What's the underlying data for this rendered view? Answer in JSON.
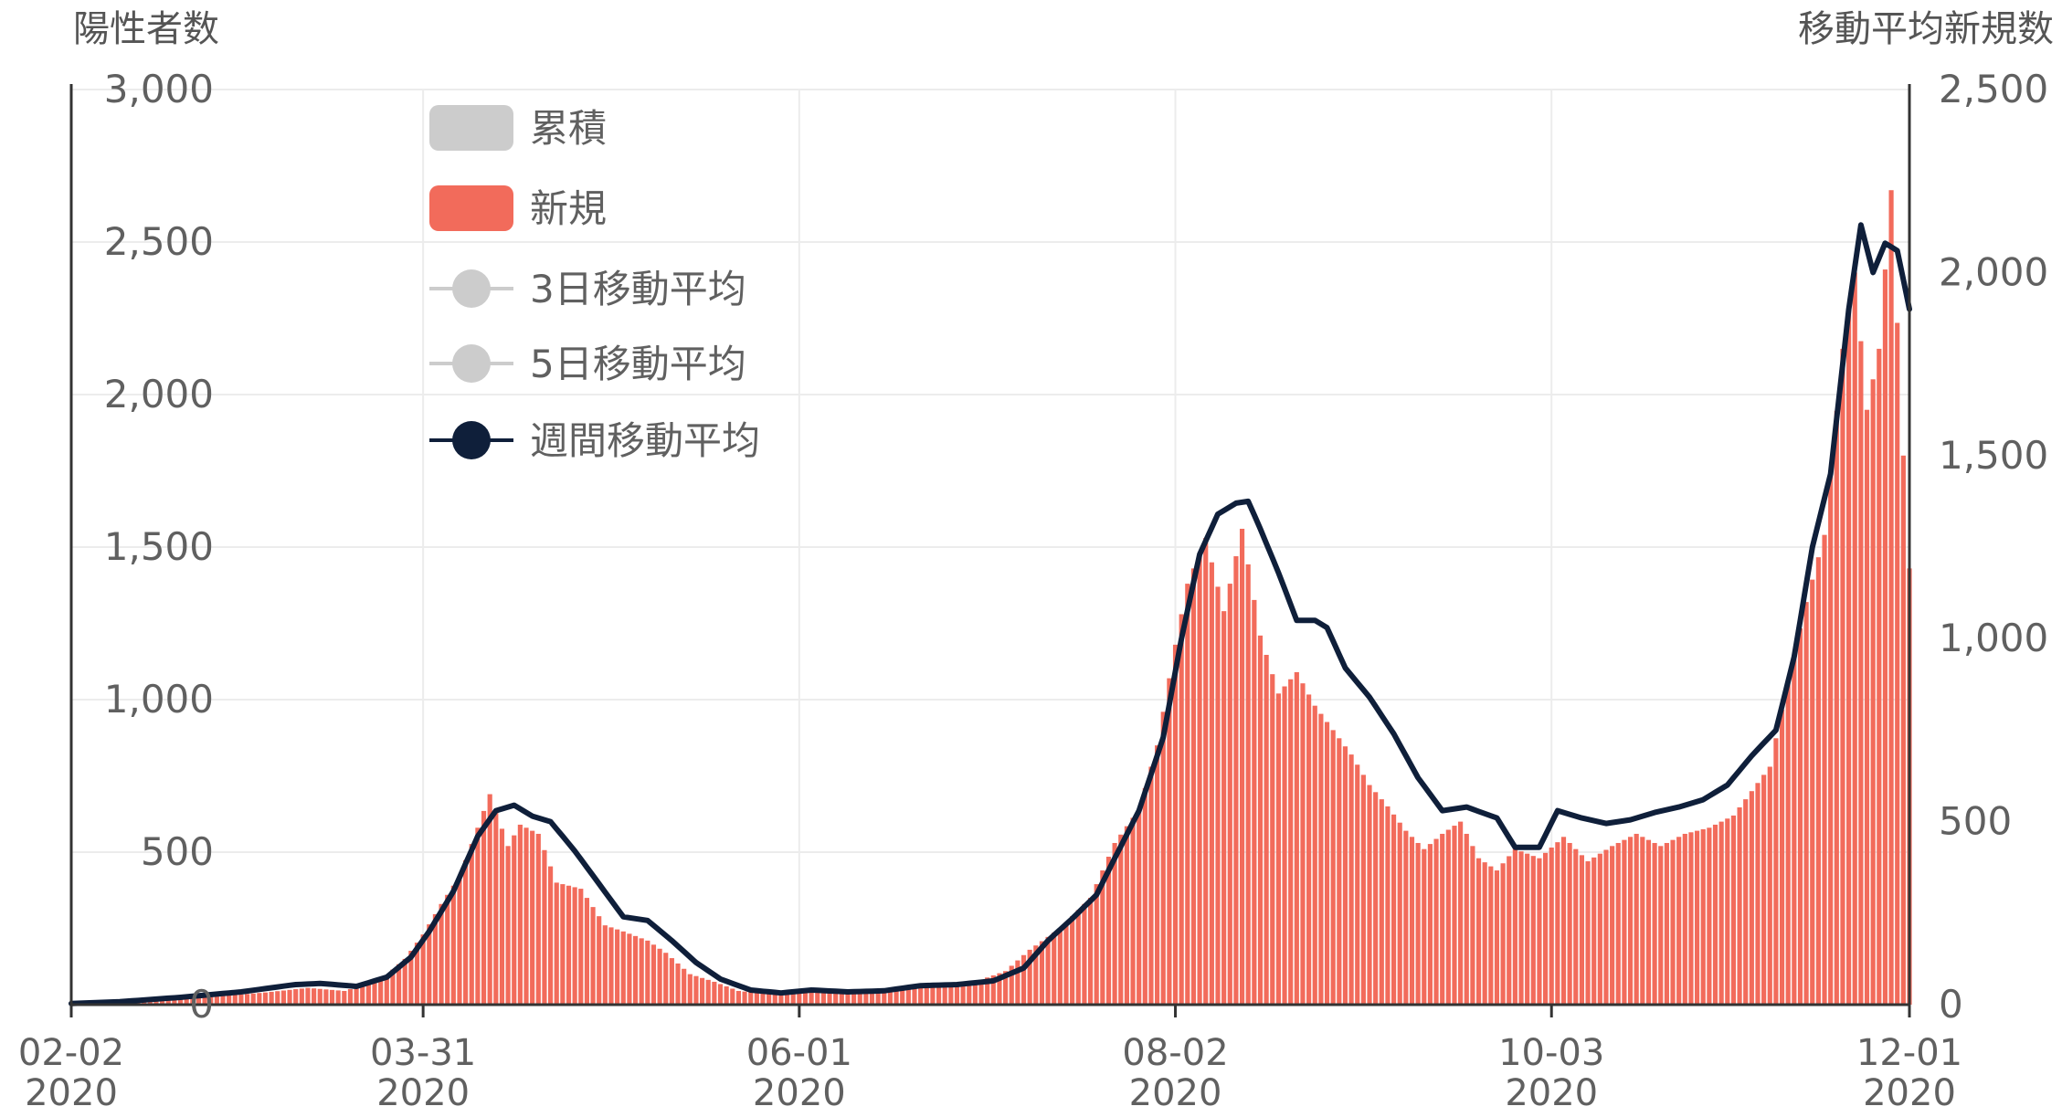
{
  "chart_data": {
    "type": "bar",
    "left_axis_title": "陽性者数",
    "right_axis_title": "移動平均新規数",
    "ylim_left": [
      0,
      3000
    ],
    "ylim_right": [
      0,
      2500
    ],
    "yticks_left": [
      0,
      500,
      1000,
      1500,
      2000,
      2500,
      3000
    ],
    "yticks_right": [
      0,
      500,
      1000,
      1500,
      2000,
      2500
    ],
    "yticks_left_labels": [
      "0",
      "500",
      "1,000",
      "1,500",
      "2,000",
      "2,500",
      "3,000"
    ],
    "yticks_right_labels": [
      "0",
      "500",
      "1,000",
      "1,500",
      "2,000",
      "2,500"
    ],
    "x_start": "2020-02-02",
    "x_end": "2020-12-01",
    "xticks": [
      {
        "date": "2020-02-02",
        "line1": "02-02",
        "line2": "2020"
      },
      {
        "date": "2020-03-31",
        "line1": "03-31",
        "line2": "2020"
      },
      {
        "date": "2020-06-01",
        "line1": "06-01",
        "line2": "2020"
      },
      {
        "date": "2020-08-02",
        "line1": "08-02",
        "line2": "2020"
      },
      {
        "date": "2020-10-03",
        "line1": "10-03",
        "line2": "2020"
      },
      {
        "date": "2020-12-01",
        "line1": "12-01",
        "line2": "2020"
      }
    ],
    "legend": [
      {
        "label": "累積",
        "kind": "bar",
        "color": "#cccccc",
        "active": false
      },
      {
        "label": "新規",
        "kind": "bar",
        "color": "#f26b5b",
        "active": true
      },
      {
        "label": "3日移動平均",
        "kind": "line",
        "color": "#cccccc",
        "active": false
      },
      {
        "label": "5日移動平均",
        "kind": "line",
        "color": "#cccccc",
        "active": false
      },
      {
        "label": "週間移動平均",
        "kind": "line",
        "color": "#0f1f3a",
        "active": true
      }
    ],
    "legend_position": "top-left",
    "bar_color": "#f26b5b",
    "line_color": "#0f1f3a",
    "series": [
      {
        "name": "新規",
        "axis": "left",
        "points": [
          [
            "2020-02-02",
            5
          ],
          [
            "2020-02-15",
            15
          ],
          [
            "2020-02-25",
            25
          ],
          [
            "2020-03-05",
            40
          ],
          [
            "2020-03-12",
            55
          ],
          [
            "2020-03-18",
            45
          ],
          [
            "2020-03-24",
            80
          ],
          [
            "2020-03-28",
            150
          ],
          [
            "2020-03-31",
            230
          ],
          [
            "2020-04-03",
            330
          ],
          [
            "2020-04-06",
            420
          ],
          [
            "2020-04-09",
            580
          ],
          [
            "2020-04-11",
            690
          ],
          [
            "2020-04-14",
            520
          ],
          [
            "2020-04-16",
            590
          ],
          [
            "2020-04-19",
            560
          ],
          [
            "2020-04-22",
            400
          ],
          [
            "2020-04-26",
            380
          ],
          [
            "2020-04-30",
            260
          ],
          [
            "2020-05-03",
            240
          ],
          [
            "2020-05-07",
            210
          ],
          [
            "2020-05-10",
            170
          ],
          [
            "2020-05-14",
            100
          ],
          [
            "2020-05-18",
            75
          ],
          [
            "2020-05-22",
            45
          ],
          [
            "2020-05-27",
            35
          ],
          [
            "2020-06-01",
            40
          ],
          [
            "2020-06-06",
            48
          ],
          [
            "2020-06-12",
            45
          ],
          [
            "2020-06-18",
            50
          ],
          [
            "2020-06-24",
            62
          ],
          [
            "2020-06-30",
            75
          ],
          [
            "2020-07-05",
            110
          ],
          [
            "2020-07-09",
            180
          ],
          [
            "2020-07-14",
            250
          ],
          [
            "2020-07-19",
            350
          ],
          [
            "2020-07-23",
            530
          ],
          [
            "2020-07-27",
            640
          ],
          [
            "2020-07-30",
            850
          ],
          [
            "2020-08-02",
            1180
          ],
          [
            "2020-08-04",
            1380
          ],
          [
            "2020-08-07",
            1530
          ],
          [
            "2020-08-10",
            1290
          ],
          [
            "2020-08-13",
            1560
          ],
          [
            "2020-08-16",
            1210
          ],
          [
            "2020-08-19",
            1020
          ],
          [
            "2020-08-22",
            1090
          ],
          [
            "2020-08-25",
            980
          ],
          [
            "2020-08-28",
            900
          ],
          [
            "2020-08-31",
            820
          ],
          [
            "2020-09-03",
            720
          ],
          [
            "2020-09-06",
            650
          ],
          [
            "2020-09-09",
            570
          ],
          [
            "2020-09-12",
            510
          ],
          [
            "2020-09-15",
            560
          ],
          [
            "2020-09-18",
            600
          ],
          [
            "2020-09-21",
            480
          ],
          [
            "2020-09-24",
            440
          ],
          [
            "2020-09-27",
            510
          ],
          [
            "2020-10-01",
            480
          ],
          [
            "2020-10-05",
            550
          ],
          [
            "2020-10-09",
            470
          ],
          [
            "2020-10-13",
            520
          ],
          [
            "2020-10-17",
            560
          ],
          [
            "2020-10-21",
            520
          ],
          [
            "2020-10-25",
            560
          ],
          [
            "2020-10-29",
            580
          ],
          [
            "2020-11-02",
            620
          ],
          [
            "2020-11-05",
            700
          ],
          [
            "2020-11-08",
            780
          ],
          [
            "2020-11-11",
            1060
          ],
          [
            "2020-11-14",
            1320
          ],
          [
            "2020-11-17",
            1540
          ],
          [
            "2020-11-20",
            2150
          ],
          [
            "2020-11-22",
            2400
          ],
          [
            "2020-11-24",
            1950
          ],
          [
            "2020-11-26",
            2150
          ],
          [
            "2020-11-28",
            2670
          ],
          [
            "2020-11-30",
            1800
          ],
          [
            "2020-12-01",
            1430
          ]
        ]
      },
      {
        "name": "週間移動平均",
        "axis": "right",
        "points": [
          [
            "2020-02-02",
            3
          ],
          [
            "2020-02-10",
            8
          ],
          [
            "2020-02-20",
            20
          ],
          [
            "2020-03-01",
            35
          ],
          [
            "2020-03-10",
            55
          ],
          [
            "2020-03-14",
            58
          ],
          [
            "2020-03-20",
            50
          ],
          [
            "2020-03-25",
            75
          ],
          [
            "2020-03-29",
            130
          ],
          [
            "2020-04-01",
            200
          ],
          [
            "2020-04-05",
            310
          ],
          [
            "2020-04-09",
            460
          ],
          [
            "2020-04-12",
            530
          ],
          [
            "2020-04-15",
            545
          ],
          [
            "2020-04-18",
            515
          ],
          [
            "2020-04-21",
            500
          ],
          [
            "2020-04-25",
            420
          ],
          [
            "2020-04-29",
            330
          ],
          [
            "2020-05-03",
            240
          ],
          [
            "2020-05-07",
            230
          ],
          [
            "2020-05-11",
            175
          ],
          [
            "2020-05-15",
            115
          ],
          [
            "2020-05-19",
            70
          ],
          [
            "2020-05-24",
            40
          ],
          [
            "2020-05-29",
            32
          ],
          [
            "2020-06-03",
            40
          ],
          [
            "2020-06-09",
            35
          ],
          [
            "2020-06-15",
            38
          ],
          [
            "2020-06-21",
            52
          ],
          [
            "2020-06-27",
            55
          ],
          [
            "2020-07-03",
            65
          ],
          [
            "2020-07-08",
            100
          ],
          [
            "2020-07-12",
            175
          ],
          [
            "2020-07-16",
            235
          ],
          [
            "2020-07-20",
            300
          ],
          [
            "2020-07-23",
            400
          ],
          [
            "2020-07-27",
            530
          ],
          [
            "2020-07-31",
            730
          ],
          [
            "2020-08-03",
            1000
          ],
          [
            "2020-08-06",
            1230
          ],
          [
            "2020-08-09",
            1340
          ],
          [
            "2020-08-12",
            1370
          ],
          [
            "2020-08-14",
            1375
          ],
          [
            "2020-08-16",
            1300
          ],
          [
            "2020-08-19",
            1180
          ],
          [
            "2020-08-22",
            1050
          ],
          [
            "2020-08-25",
            1050
          ],
          [
            "2020-08-27",
            1030
          ],
          [
            "2020-08-30",
            920
          ],
          [
            "2020-09-03",
            840
          ],
          [
            "2020-09-07",
            740
          ],
          [
            "2020-09-11",
            620
          ],
          [
            "2020-09-15",
            530
          ],
          [
            "2020-09-19",
            540
          ],
          [
            "2020-09-24",
            510
          ],
          [
            "2020-09-27",
            430
          ],
          [
            "2020-10-01",
            430
          ],
          [
            "2020-10-04",
            530
          ],
          [
            "2020-10-08",
            510
          ],
          [
            "2020-10-12",
            495
          ],
          [
            "2020-10-16",
            505
          ],
          [
            "2020-10-20",
            525
          ],
          [
            "2020-10-24",
            540
          ],
          [
            "2020-10-28",
            560
          ],
          [
            "2020-11-01",
            600
          ],
          [
            "2020-11-05",
            680
          ],
          [
            "2020-11-09",
            750
          ],
          [
            "2020-11-12",
            950
          ],
          [
            "2020-11-15",
            1250
          ],
          [
            "2020-11-18",
            1450
          ],
          [
            "2020-11-21",
            1900
          ],
          [
            "2020-11-23",
            2130
          ],
          [
            "2020-11-25",
            2000
          ],
          [
            "2020-11-27",
            2080
          ],
          [
            "2020-11-29",
            2060
          ],
          [
            "2020-12-01",
            1900
          ]
        ]
      }
    ]
  }
}
